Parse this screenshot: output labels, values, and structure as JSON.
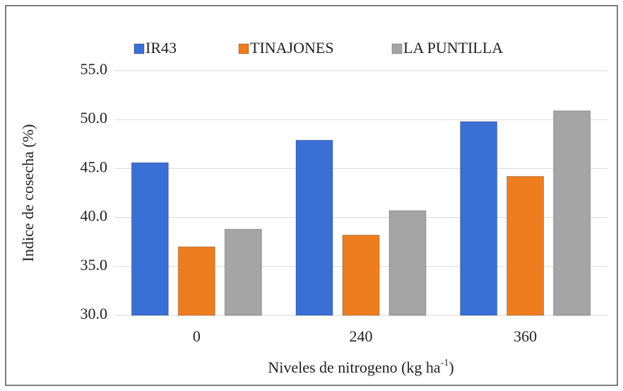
{
  "chart_data": {
    "type": "bar",
    "categories": [
      "0",
      "240",
      "360"
    ],
    "series": [
      {
        "name": "IR43",
        "color": "#3a6fd6",
        "values": [
          45.6,
          47.9,
          49.8
        ]
      },
      {
        "name": "TINAJONES",
        "color": "#ee7d1f",
        "values": [
          37.0,
          38.2,
          44.2
        ]
      },
      {
        "name": "LA PUNTILLA",
        "color": "#a5a5a5",
        "values": [
          38.8,
          40.7,
          50.9
        ]
      }
    ],
    "ylim": [
      30,
      55
    ],
    "yticks": [
      {
        "value": 30,
        "label": "30.0"
      },
      {
        "value": 35,
        "label": "35.0"
      },
      {
        "value": 40,
        "label": "40.0"
      },
      {
        "value": 45,
        "label": "45.0"
      },
      {
        "value": 50,
        "label": "50.0"
      },
      {
        "value": 55,
        "label": "55.0"
      }
    ],
    "y_label": "Indice de cosecha (%)",
    "x_label": {
      "text": "Niveles de nitrogeno (kg ha",
      "sup": "-1",
      "end": ")"
    },
    "grid": true,
    "legend": "top"
  }
}
